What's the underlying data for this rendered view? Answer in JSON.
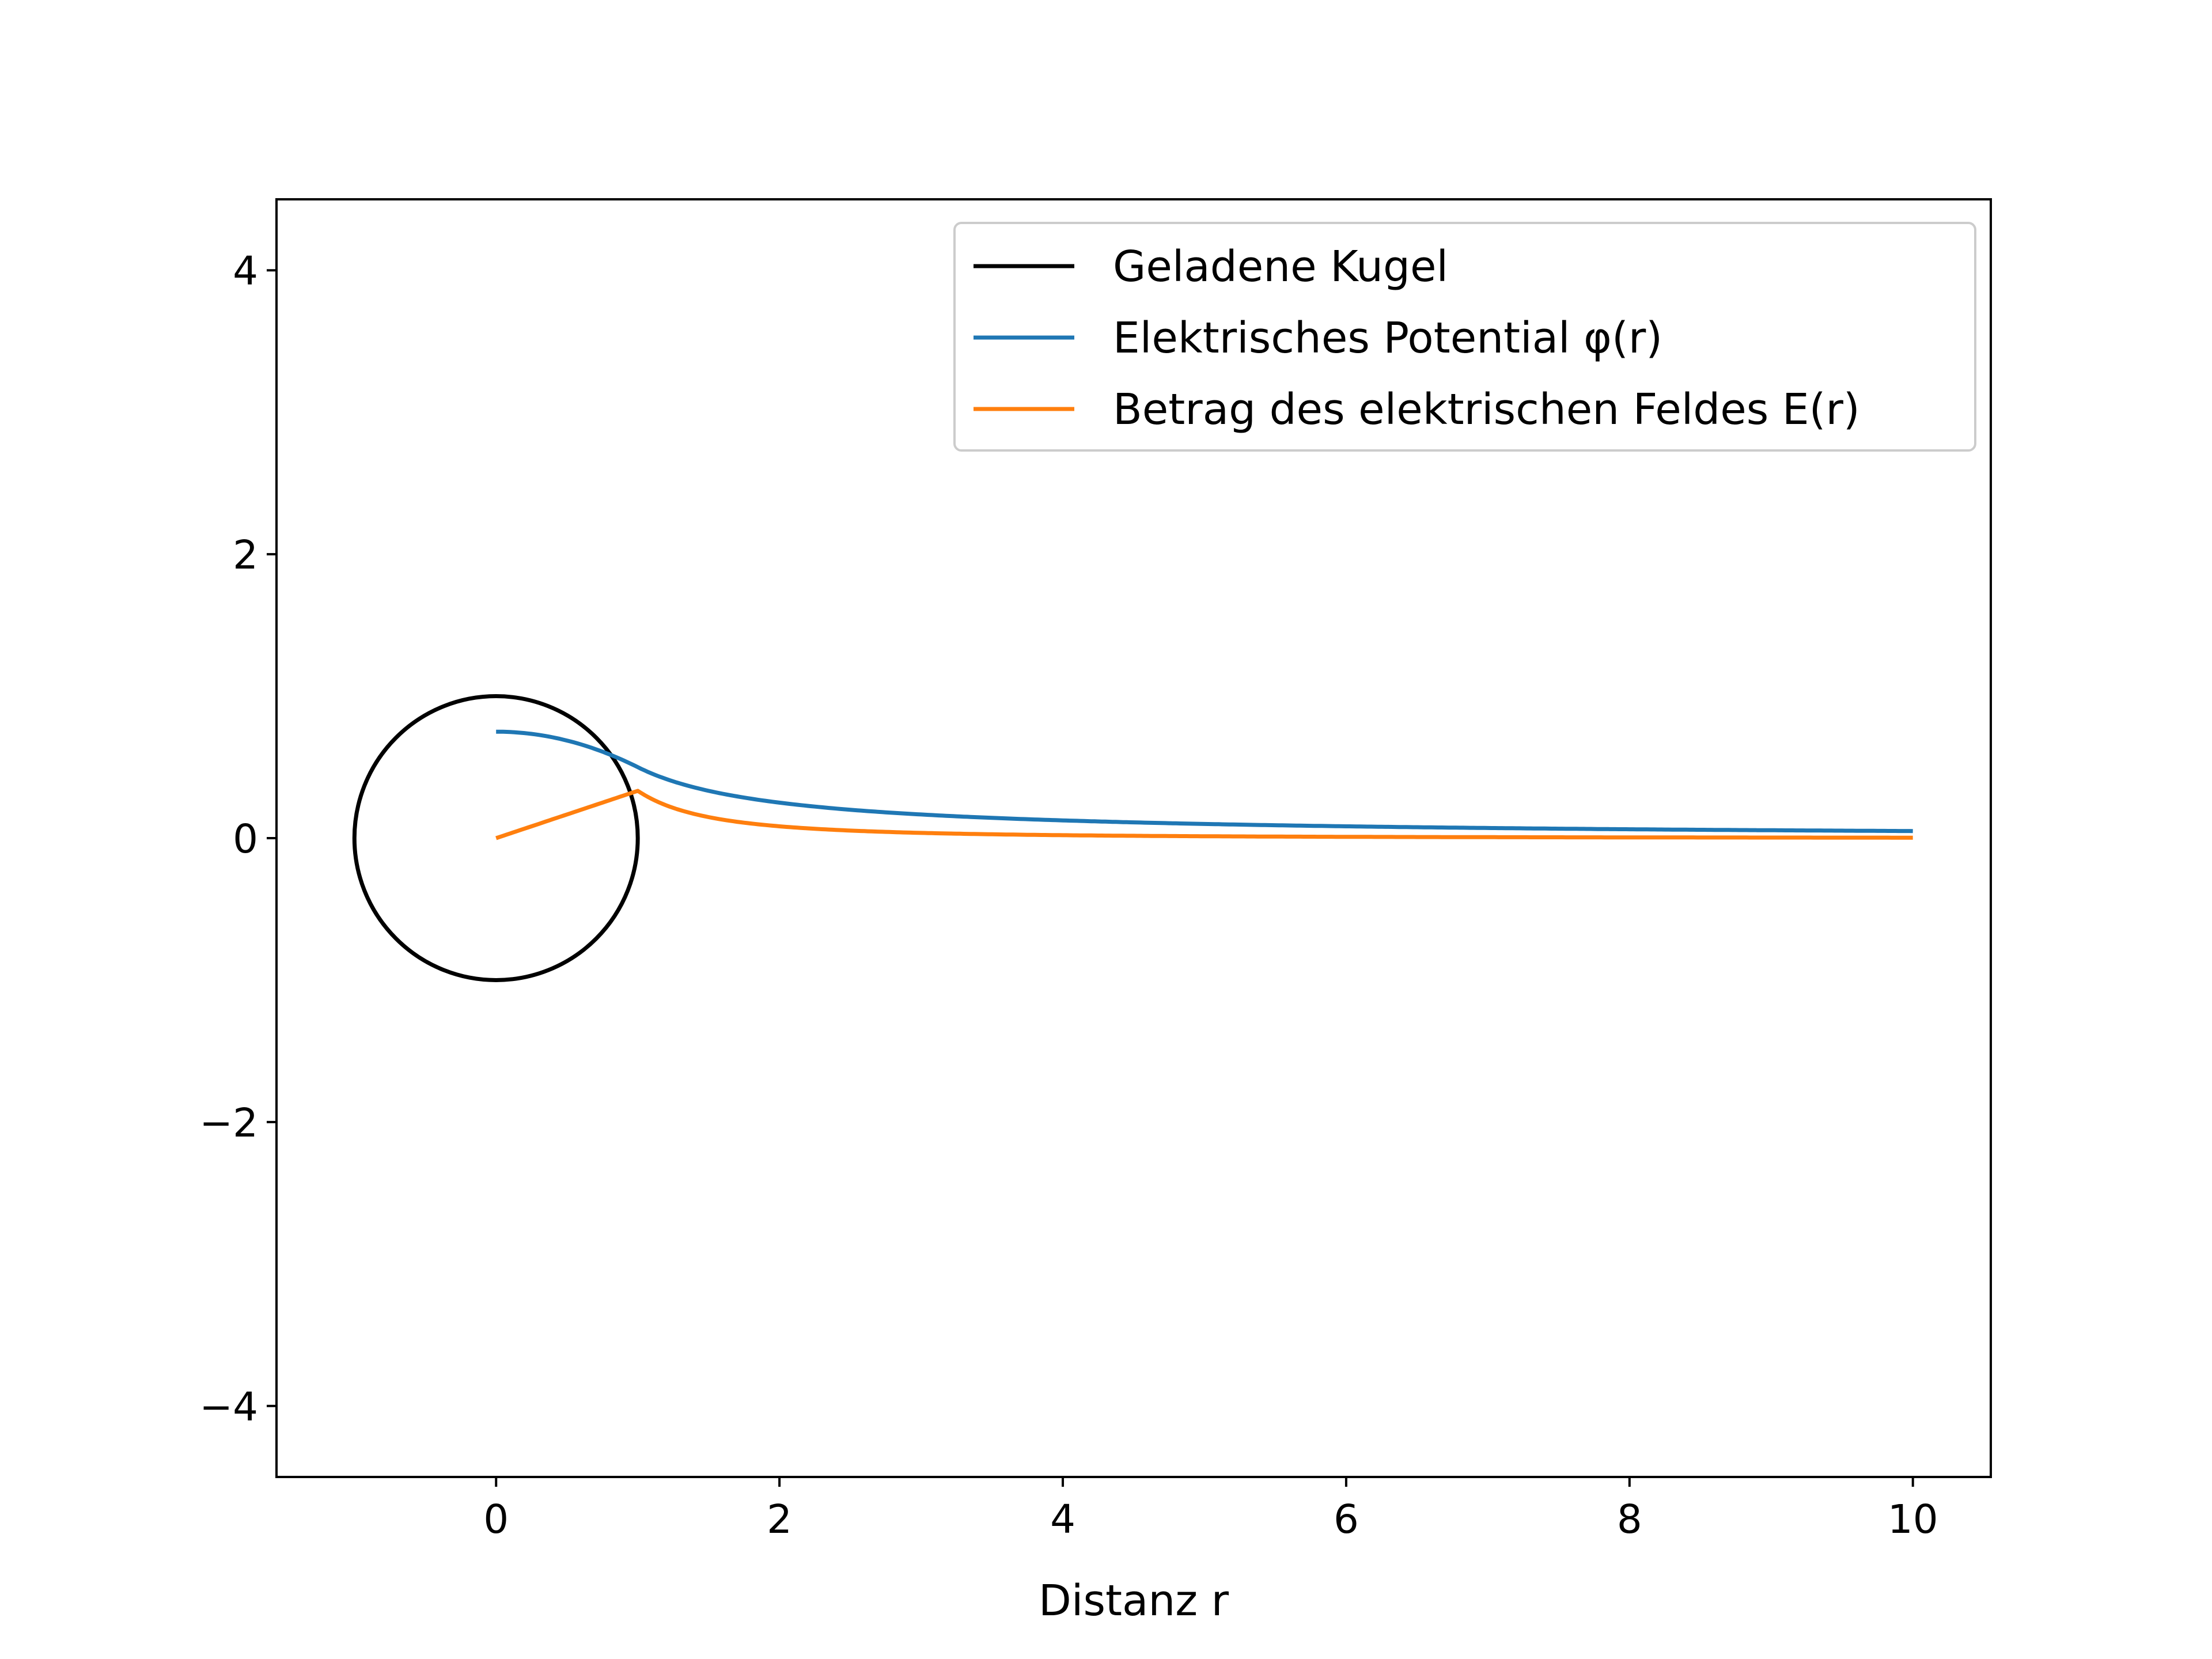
{
  "chart_data": {
    "type": "line",
    "title": "",
    "xlabel": "Distanz r",
    "ylabel": "",
    "xlim": [
      -1.55,
      10.55
    ],
    "ylim": [
      -4.5,
      4.5
    ],
    "x_ticks": [
      0,
      2,
      4,
      6,
      8,
      10
    ],
    "x_tick_labels": [
      "0",
      "2",
      "4",
      "6",
      "8",
      "10"
    ],
    "y_ticks": [
      -4,
      -2,
      0,
      2,
      4
    ],
    "y_tick_labels": [
      "−4",
      "−2",
      "0",
      "2",
      "4"
    ],
    "grid": false,
    "legend_position": "top-right",
    "series": [
      {
        "name": "Geladene Kugel",
        "color": "#000000",
        "shape": "circle",
        "center": [
          0,
          0
        ],
        "radius": 1
      },
      {
        "name": "Elektrisches Potential φ(r)",
        "color": "#1f77b4",
        "x": [
          0,
          0.2,
          0.4,
          0.6,
          0.8,
          1.0,
          1.25,
          1.5,
          2,
          2.5,
          3,
          4,
          5,
          6,
          7,
          8,
          9,
          10
        ],
        "y": [
          0.5,
          0.493,
          0.473,
          0.44,
          0.393,
          0.333,
          0.267,
          0.222,
          0.167,
          0.133,
          0.111,
          0.083,
          0.067,
          0.056,
          0.048,
          0.042,
          0.037,
          0.033
        ]
      },
      {
        "name": "Betrag des elektrischen Feldes E(r)",
        "color": "#ff7f0e",
        "x": [
          0,
          0.2,
          0.4,
          0.6,
          0.8,
          1.0,
          1.25,
          1.5,
          2,
          2.5,
          3,
          4,
          5,
          6,
          7,
          8,
          9,
          10
        ],
        "y": [
          0,
          0.067,
          0.133,
          0.2,
          0.267,
          0.333,
          0.213,
          0.148,
          0.083,
          0.053,
          0.037,
          0.021,
          0.013,
          0.009,
          0.007,
          0.005,
          0.004,
          0.003
        ]
      }
    ]
  }
}
